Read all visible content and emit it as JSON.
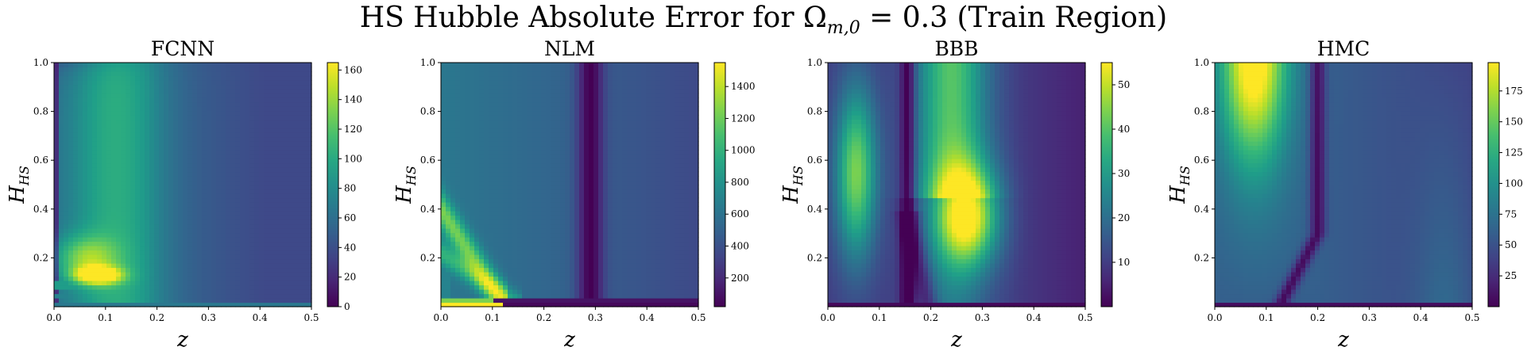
{
  "figure": {
    "title_prefix": "HS Hubble Absolute Error for Ω",
    "title_sub": "m,0",
    "title_suffix": " = 0.3 (Train Region)"
  },
  "chart_data": [
    {
      "type": "heatmap",
      "title": "FCNN",
      "xlabel": "z",
      "ylabel": "H",
      "ylabel_sub": "HS",
      "xlim": [
        0.0,
        0.5
      ],
      "ylim": [
        0.0,
        1.0
      ],
      "x_ticks": [
        "0.0",
        "0.1",
        "0.2",
        "0.3",
        "0.4",
        "0.5"
      ],
      "y_ticks": [
        "0.2",
        "0.4",
        "0.6",
        "0.8",
        "1.0"
      ],
      "colorbar_range": [
        0,
        165
      ],
      "colorbar_ticks": [
        "0",
        "20",
        "40",
        "60",
        "80",
        "100",
        "120",
        "140",
        "160"
      ],
      "colormap": "viridis"
    },
    {
      "type": "heatmap",
      "title": "NLM",
      "xlabel": "z",
      "ylabel": "H",
      "ylabel_sub": "HS",
      "xlim": [
        0.0,
        0.5
      ],
      "ylim": [
        0.0,
        1.0
      ],
      "x_ticks": [
        "0.0",
        "0.1",
        "0.2",
        "0.3",
        "0.4",
        "0.5"
      ],
      "y_ticks": [
        "0.2",
        "0.4",
        "0.6",
        "0.8",
        "1.0"
      ],
      "colorbar_range": [
        20,
        1550
      ],
      "colorbar_ticks": [
        "200",
        "400",
        "600",
        "800",
        "1000",
        "1200",
        "1400"
      ],
      "colormap": "viridis"
    },
    {
      "type": "heatmap",
      "title": "BBB",
      "xlabel": "z",
      "ylabel": "H",
      "ylabel_sub": "HS",
      "xlim": [
        0.0,
        0.5
      ],
      "ylim": [
        0.0,
        1.0
      ],
      "x_ticks": [
        "0.0",
        "0.1",
        "0.2",
        "0.3",
        "0.4",
        "0.5"
      ],
      "y_ticks": [
        "0.2",
        "0.4",
        "0.6",
        "0.8",
        "1.0"
      ],
      "colorbar_range": [
        0,
        55
      ],
      "colorbar_ticks": [
        "10",
        "20",
        "30",
        "40",
        "50"
      ],
      "colormap": "viridis"
    },
    {
      "type": "heatmap",
      "title": "HMC",
      "xlabel": "z",
      "ylabel": "H",
      "ylabel_sub": "HS",
      "xlim": [
        0.0,
        0.5
      ],
      "ylim": [
        0.0,
        1.0
      ],
      "x_ticks": [
        "0.0",
        "0.1",
        "0.2",
        "0.3",
        "0.4",
        "0.5"
      ],
      "y_ticks": [
        "0.2",
        "0.4",
        "0.6",
        "0.8",
        "1.0"
      ],
      "colorbar_range": [
        0,
        198
      ],
      "colorbar_ticks": [
        "25",
        "50",
        "75",
        "100",
        "125",
        "150",
        "175"
      ],
      "colormap": "viridis"
    }
  ]
}
